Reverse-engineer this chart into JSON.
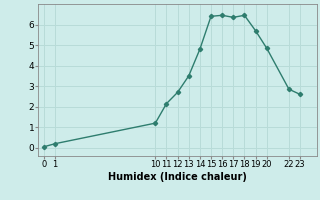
{
  "x": [
    0,
    1,
    10,
    11,
    12,
    13,
    14,
    15,
    16,
    17,
    18,
    19,
    20,
    22,
    23
  ],
  "y": [
    0.05,
    0.2,
    1.2,
    2.15,
    2.7,
    3.5,
    4.8,
    6.4,
    6.45,
    6.35,
    6.45,
    5.7,
    4.85,
    2.85,
    2.6
  ],
  "xticks": [
    0,
    1,
    10,
    11,
    12,
    13,
    14,
    15,
    16,
    17,
    18,
    19,
    20,
    22,
    23
  ],
  "xtick_labels": [
    "0",
    "1",
    "10",
    "11",
    "12",
    "13",
    "14",
    "15",
    "16",
    "17",
    "18",
    "19",
    "20",
    "22",
    "23"
  ],
  "yticks": [
    0,
    1,
    2,
    3,
    4,
    5,
    6
  ],
  "ylim": [
    -0.4,
    7.0
  ],
  "xlim": [
    -0.5,
    24.5
  ],
  "xlabel": "Humidex (Indice chaleur)",
  "line_color": "#2e7d6e",
  "bg_color": "#ceecea",
  "grid_color": "#b8dbd8",
  "marker": "D",
  "marker_size": 2.2,
  "line_width": 1.0,
  "xlabel_fontsize": 7,
  "tick_fontsize": 6,
  "ytick_fontsize": 6.5
}
